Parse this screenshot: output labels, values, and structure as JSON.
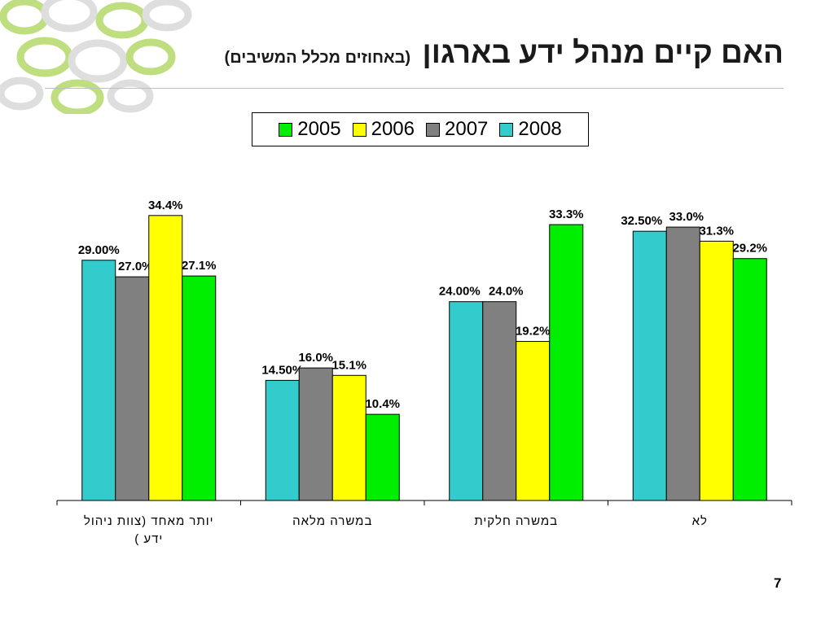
{
  "slide": {
    "title": "האם קיים מנהל ידע בארגון",
    "subtitle": "(באחוזים מכלל המשיבים)",
    "page_number": "7"
  },
  "colors": {
    "2005": "#00ee00",
    "2006": "#ffff00",
    "2007": "#808080",
    "2008": "#33cccc",
    "decoration": "#b5d96a"
  },
  "chart_data": {
    "type": "bar",
    "categories": [
      "יותר מאחד (צוות ניהול ידע )",
      "במשרה מלאה",
      "במשרה חלקית",
      "לא"
    ],
    "category_lines": [
      [
        "יותר מאחד (צוות ניהול",
        "ידע )"
      ],
      [
        "במשרה מלאה"
      ],
      [
        "במשרה חלקית"
      ],
      [
        "לא"
      ]
    ],
    "series": [
      {
        "name": "2005",
        "values": [
          27.1,
          10.4,
          33.3,
          29.2
        ],
        "labels": [
          "27.1%",
          "10.4%",
          "33.3%",
          "29.2%"
        ]
      },
      {
        "name": "2006",
        "values": [
          34.4,
          15.1,
          19.2,
          31.3
        ],
        "labels": [
          "34.4%",
          "15.1%",
          "19.2%",
          "31.3%"
        ]
      },
      {
        "name": "2007",
        "values": [
          27.0,
          16.0,
          24.0,
          33.0
        ],
        "labels": [
          "27.0%",
          "16.0%",
          "24.0%",
          "33.0%"
        ]
      },
      {
        "name": "2008",
        "values": [
          29.0,
          14.5,
          24.0,
          32.5
        ],
        "labels": [
          "29.00%",
          "14.50%",
          "24.00%",
          "32.50%"
        ]
      }
    ],
    "ylim": [
      0,
      40
    ],
    "grid": false,
    "legend_position": "top"
  }
}
